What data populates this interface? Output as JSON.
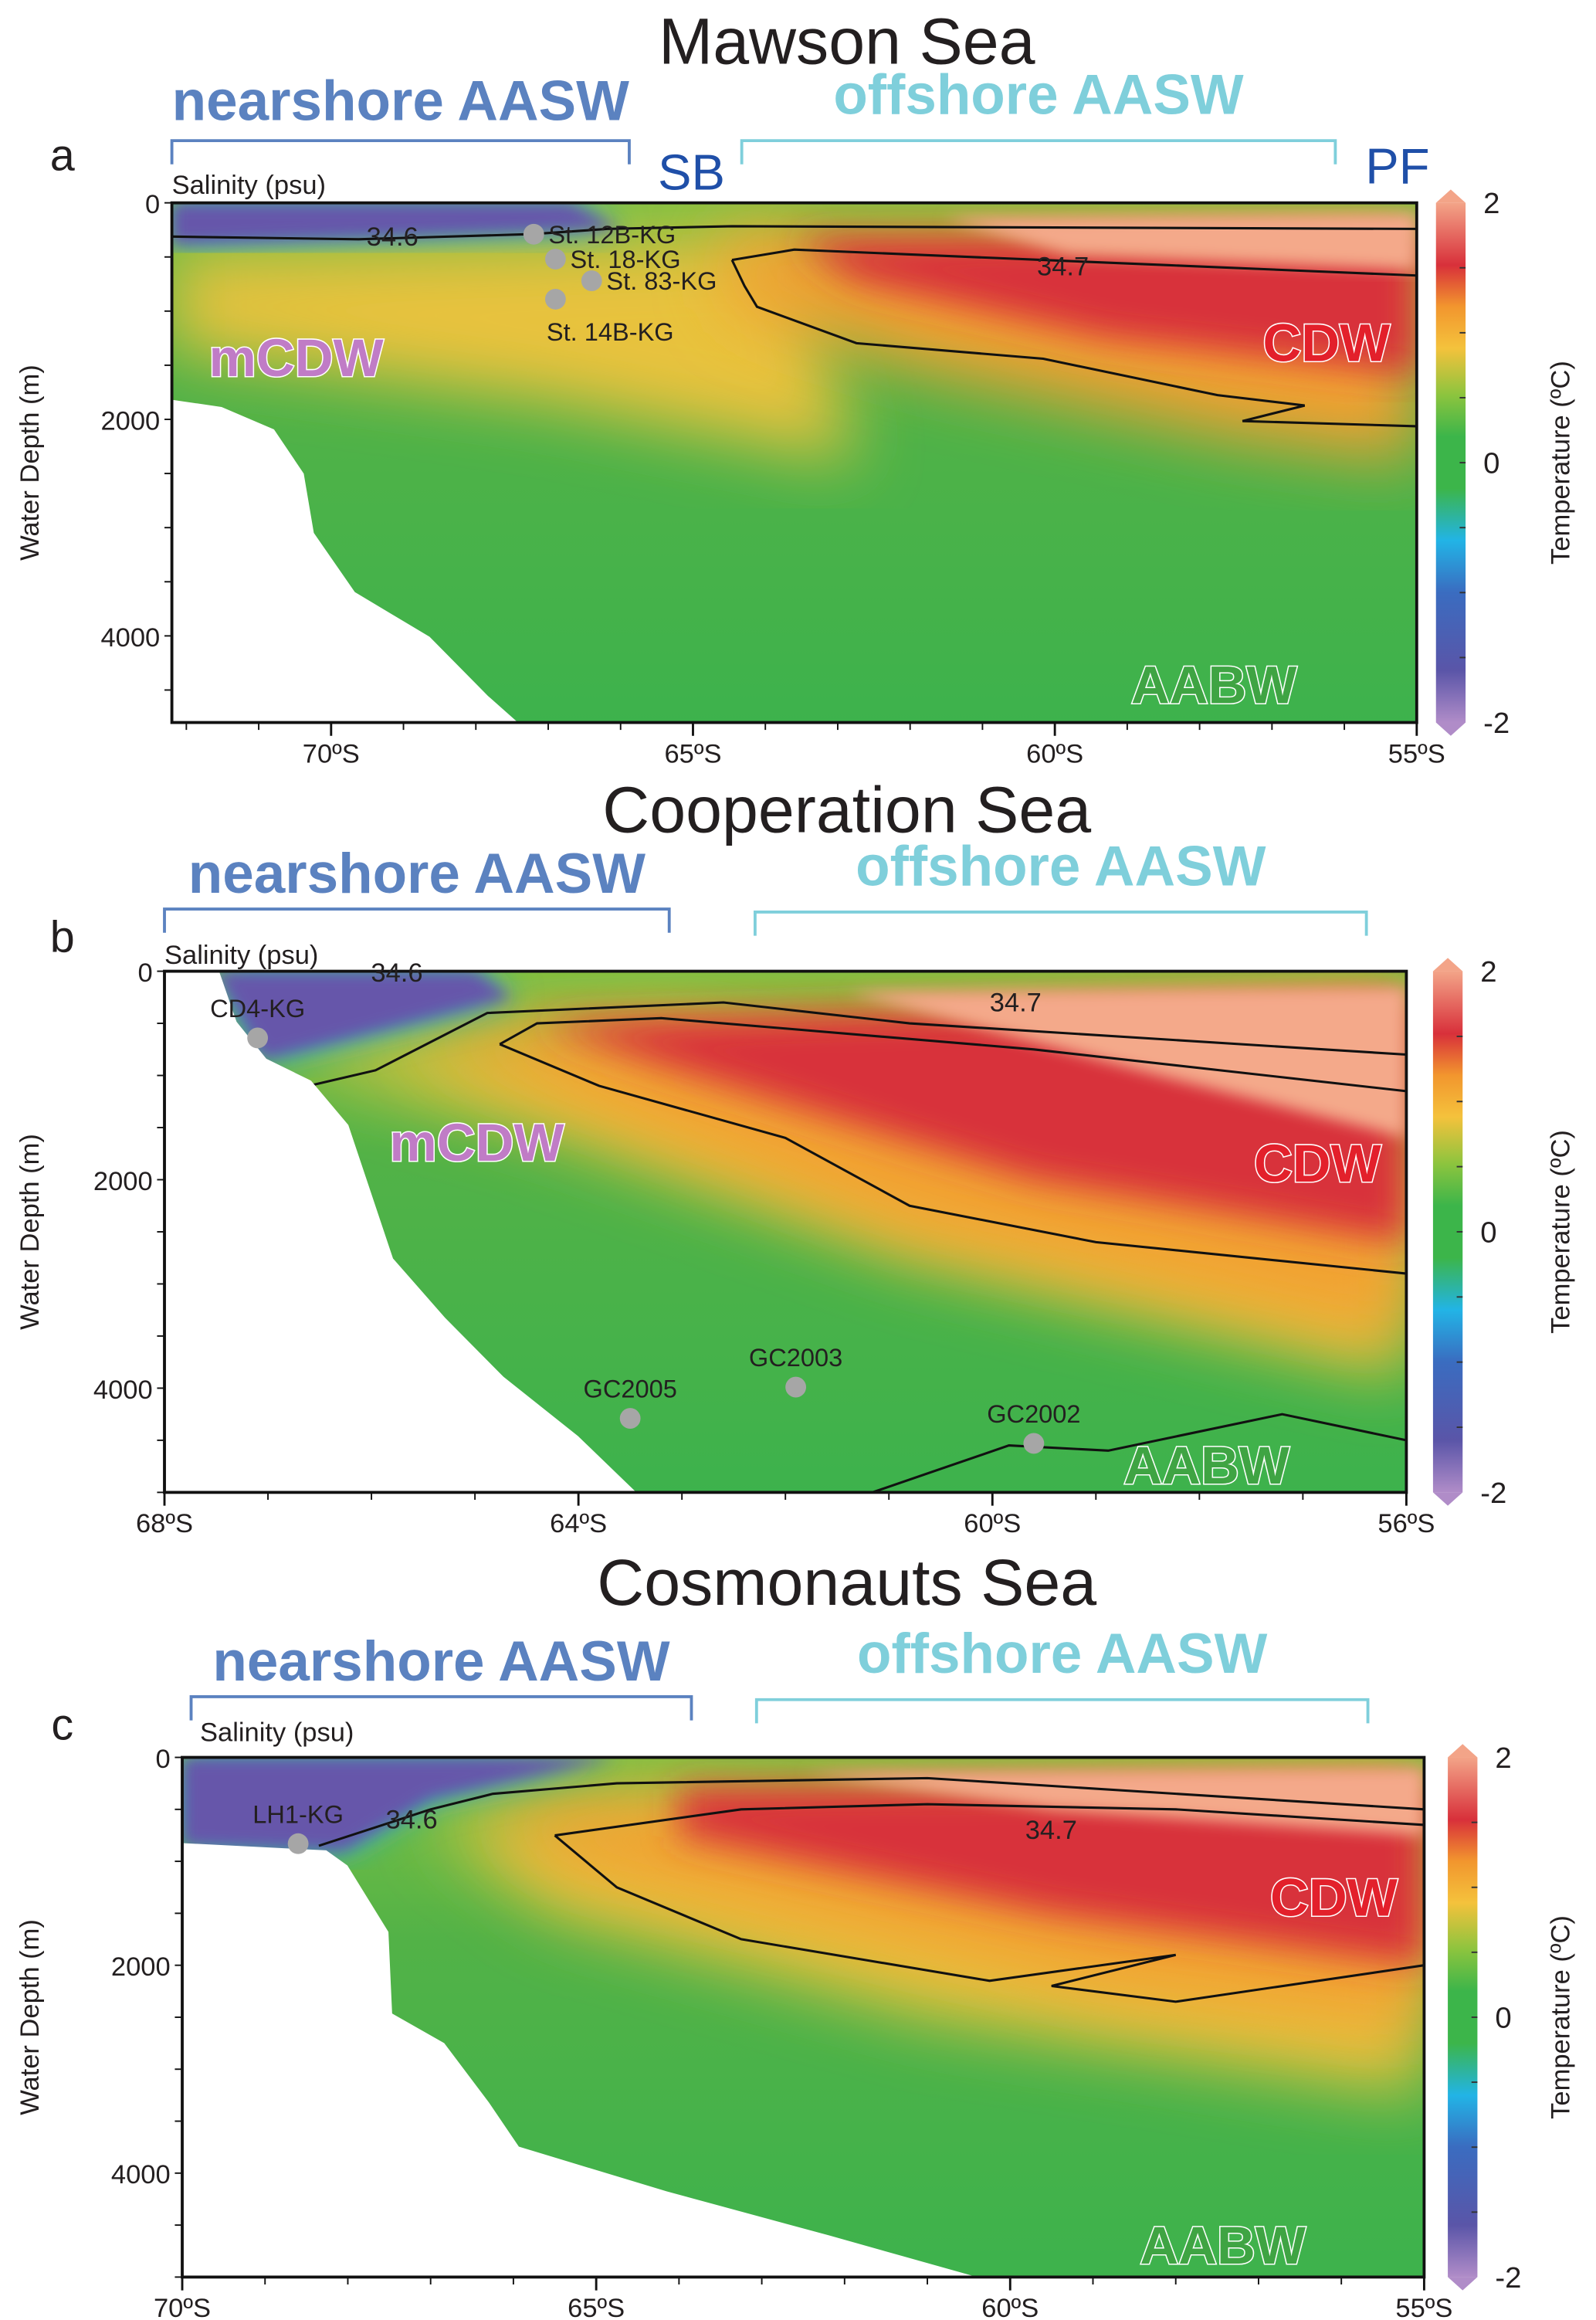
{
  "chart_data": {
    "type": "heatmap",
    "description_units": {
      "x": "latitude (ºS)",
      "y": "water depth (m)",
      "color": "temperature (ºC)"
    },
    "colorbar_range": [
      -2,
      2
    ],
    "colors": {
      "nearshore": "#5b82c0",
      "offshore": "#7fcfdb",
      "boundary": "#1f4fa8",
      "mcdw": "#c07cc6",
      "cdw": "#e3202b",
      "aabw": "#3fa443",
      "station": "#a6a6a6",
      "scale": [
        "#b08cc8",
        "#5a55a8",
        "#3a6cc0",
        "#22b4e6",
        "#3cb54a",
        "#8cc43e",
        "#f4c23c",
        "#f2962e",
        "#d8303a",
        "#f3a488"
      ]
    },
    "panels": [
      {
        "letter": "a",
        "title": "Mawson Sea",
        "salinity_label": "Salinity (psu)",
        "nearshore_label": "nearshore AASW",
        "offshore_label": "offshore AASW",
        "boundary_labels": [
          "SB",
          "PF"
        ],
        "lat_range": [
          72.2,
          55
        ],
        "depth_max": 4800,
        "x_ticks": [
          {
            "lat": 70,
            "label": "70ºS"
          },
          {
            "lat": 65,
            "label": "65ºS"
          },
          {
            "lat": 60,
            "label": "60ºS"
          },
          {
            "lat": 55,
            "label": "55ºS"
          }
        ],
        "y_ticks": [
          {
            "depth": 0,
            "label": "0"
          },
          {
            "depth": 2000,
            "label": "2000"
          },
          {
            "depth": 4000,
            "label": "4000"
          }
        ],
        "y_label": "Water Depth (m)",
        "colorbar": {
          "ticks": [
            "2",
            "0",
            "-2"
          ],
          "label": "Temperature (ºC)"
        },
        "contour_labels": [
          "34.6",
          "34.7"
        ],
        "water_masses": [
          "mCDW",
          "CDW",
          "AABW"
        ],
        "stations": [
          {
            "name": "St. 12B-KG",
            "lat": 67.2,
            "depth": 290
          },
          {
            "name": "St. 18-KG",
            "lat": 66.9,
            "depth": 520
          },
          {
            "name": "St. 83-KG",
            "lat": 66.4,
            "depth": 720
          },
          {
            "name": "St. 14B-KG",
            "lat": 66.9,
            "depth": 890
          }
        ]
      },
      {
        "letter": "b",
        "title": "Cooperation Sea",
        "salinity_label": "Salinity (psu)",
        "nearshore_label": "nearshore AASW",
        "offshore_label": "offshore AASW",
        "boundary_labels": [],
        "lat_range": [
          68,
          56
        ],
        "depth_max": 5000,
        "x_ticks": [
          {
            "lat": 68,
            "label": "68ºS"
          },
          {
            "lat": 64,
            "label": "64ºS"
          },
          {
            "lat": 60,
            "label": "60ºS"
          },
          {
            "lat": 56,
            "label": "56ºS"
          }
        ],
        "y_ticks": [
          {
            "depth": 0,
            "label": "0"
          },
          {
            "depth": 2000,
            "label": "2000"
          },
          {
            "depth": 4000,
            "label": "4000"
          }
        ],
        "y_label": "Water Depth (m)",
        "colorbar": {
          "ticks": [
            "2",
            "0",
            "-2"
          ],
          "label": "Temperature (ºC)"
        },
        "contour_labels": [
          "34.6",
          "34.7"
        ],
        "water_masses": [
          "mCDW",
          "CDW",
          "AABW"
        ],
        "stations": [
          {
            "name": "CD4-KG",
            "lat": 67.1,
            "depth": 640
          },
          {
            "name": "GC2005",
            "lat": 63.5,
            "depth": 4290
          },
          {
            "name": "GC2003",
            "lat": 61.9,
            "depth": 3990
          },
          {
            "name": "GC2002",
            "lat": 59.6,
            "depth": 4530
          }
        ]
      },
      {
        "letter": "c",
        "title": "Cosmonauts Sea",
        "salinity_label": "Salinity (psu)",
        "nearshore_label": "nearshore AASW",
        "offshore_label": "offshore AASW",
        "boundary_labels": [],
        "lat_range": [
          70,
          55
        ],
        "depth_max": 5000,
        "x_ticks": [
          {
            "lat": 70,
            "label": "70ºS"
          },
          {
            "lat": 65,
            "label": "65ºS"
          },
          {
            "lat": 60,
            "label": "60ºS"
          },
          {
            "lat": 55,
            "label": "55ºS"
          }
        ],
        "y_ticks": [
          {
            "depth": 0,
            "label": "0"
          },
          {
            "depth": 2000,
            "label": "2000"
          },
          {
            "depth": 4000,
            "label": "4000"
          }
        ],
        "y_label": "Water Depth (m)",
        "colorbar": {
          "ticks": [
            "2",
            "0",
            "-2"
          ],
          "label": "Temperature (ºC)"
        },
        "contour_labels": [
          "34.6",
          "34.7"
        ],
        "water_masses": [
          "",
          "CDW",
          "AABW"
        ],
        "stations": [
          {
            "name": "LH1-KG",
            "lat": 68.6,
            "depth": 830
          }
        ]
      }
    ]
  }
}
